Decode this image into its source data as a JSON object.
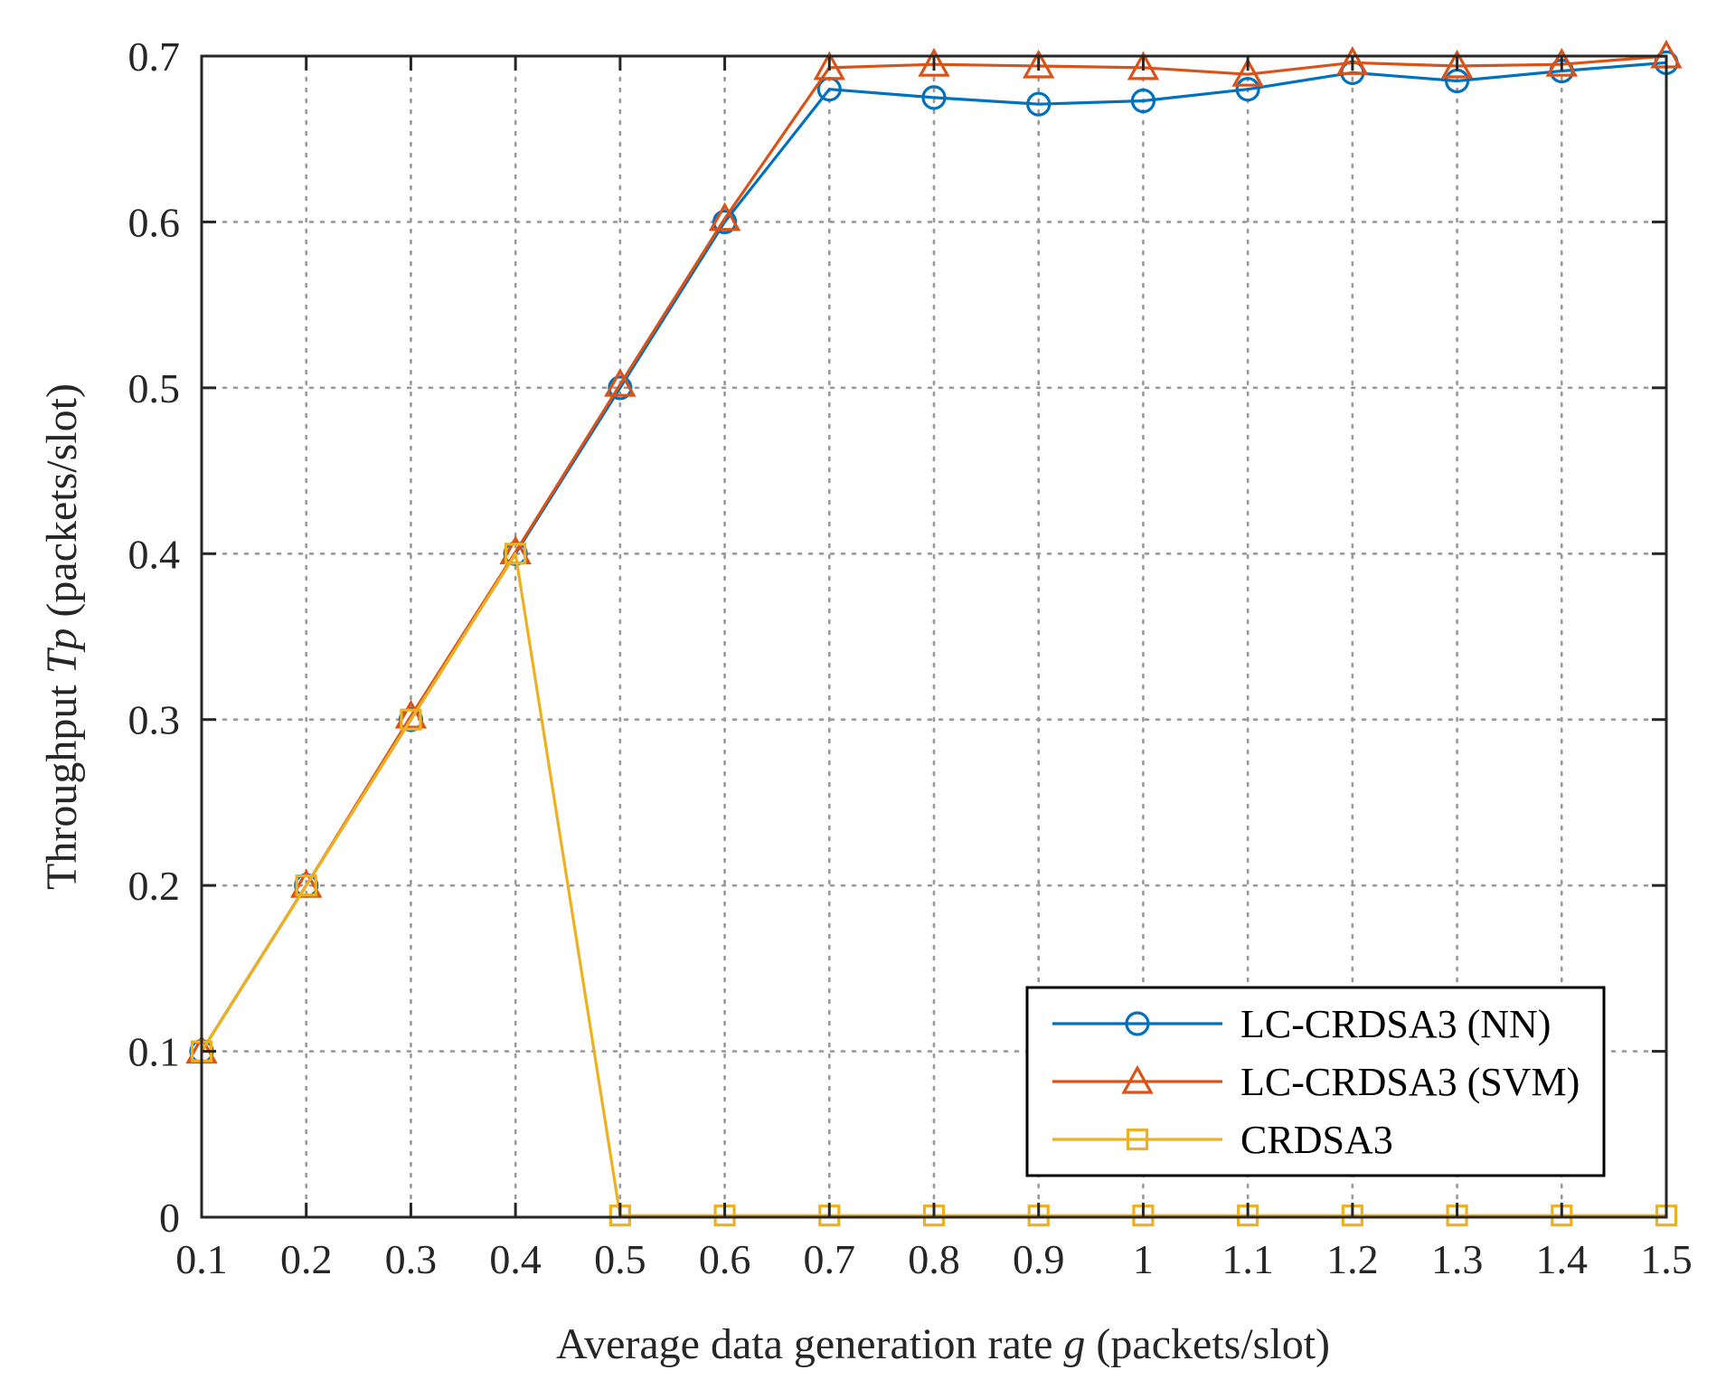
{
  "chart_data": {
    "type": "line",
    "title": "",
    "xlabel": {
      "prefix": "Average data generation rate ",
      "variable": "g",
      "suffix": "  (packets/slot)"
    },
    "ylabel": {
      "prefix": "Throughput ",
      "variable": "Tp",
      "suffix": " (packets/slot)"
    },
    "xlim": [
      0.1,
      1.5
    ],
    "ylim": [
      0,
      0.7
    ],
    "xticks": [
      0.1,
      0.2,
      0.3,
      0.4,
      0.5,
      0.6,
      0.7,
      0.8,
      0.9,
      1,
      1.1,
      1.2,
      1.3,
      1.4,
      1.5
    ],
    "xtick_labels": [
      "0.1",
      "0.2",
      "0.3",
      "0.4",
      "0.5",
      "0.6",
      "0.7",
      "0.8",
      "0.9",
      "1",
      "1.1",
      "1.2",
      "1.3",
      "1.4",
      "1.5"
    ],
    "yticks": [
      0,
      0.1,
      0.2,
      0.3,
      0.4,
      0.5,
      0.6,
      0.7
    ],
    "ytick_labels": [
      "0",
      "0.1",
      "0.2",
      "0.3",
      "0.4",
      "0.5",
      "0.6",
      "0.7"
    ],
    "grid": true,
    "legend_position": "bottom-right",
    "x": [
      0.1,
      0.2,
      0.3,
      0.4,
      0.5,
      0.6,
      0.7,
      0.8,
      0.9,
      1.0,
      1.1,
      1.2,
      1.3,
      1.4,
      1.5
    ],
    "series": [
      {
        "name": "LC-CRDSA3 (NN)",
        "color": "#0072BD",
        "marker": "circle",
        "values": [
          0.1,
          0.2,
          0.3,
          0.4,
          0.5,
          0.6,
          0.68,
          0.675,
          0.671,
          0.673,
          0.68,
          0.69,
          0.685,
          0.691,
          0.696
        ]
      },
      {
        "name": "LC-CRDSA3 (SVM)",
        "color": "#D95319",
        "marker": "triangle",
        "values": [
          0.1,
          0.2,
          0.302,
          0.401,
          0.502,
          0.602,
          0.693,
          0.695,
          0.694,
          0.693,
          0.689,
          0.696,
          0.694,
          0.695,
          0.7
        ]
      },
      {
        "name": "CRDSA3",
        "color": "#EDB120",
        "marker": "square",
        "values": [
          0.1,
          0.2,
          0.3,
          0.4,
          0.001,
          0.001,
          0.001,
          0.001,
          0.001,
          0.001,
          0.001,
          0.001,
          0.001,
          0.001,
          0.001
        ]
      }
    ]
  }
}
